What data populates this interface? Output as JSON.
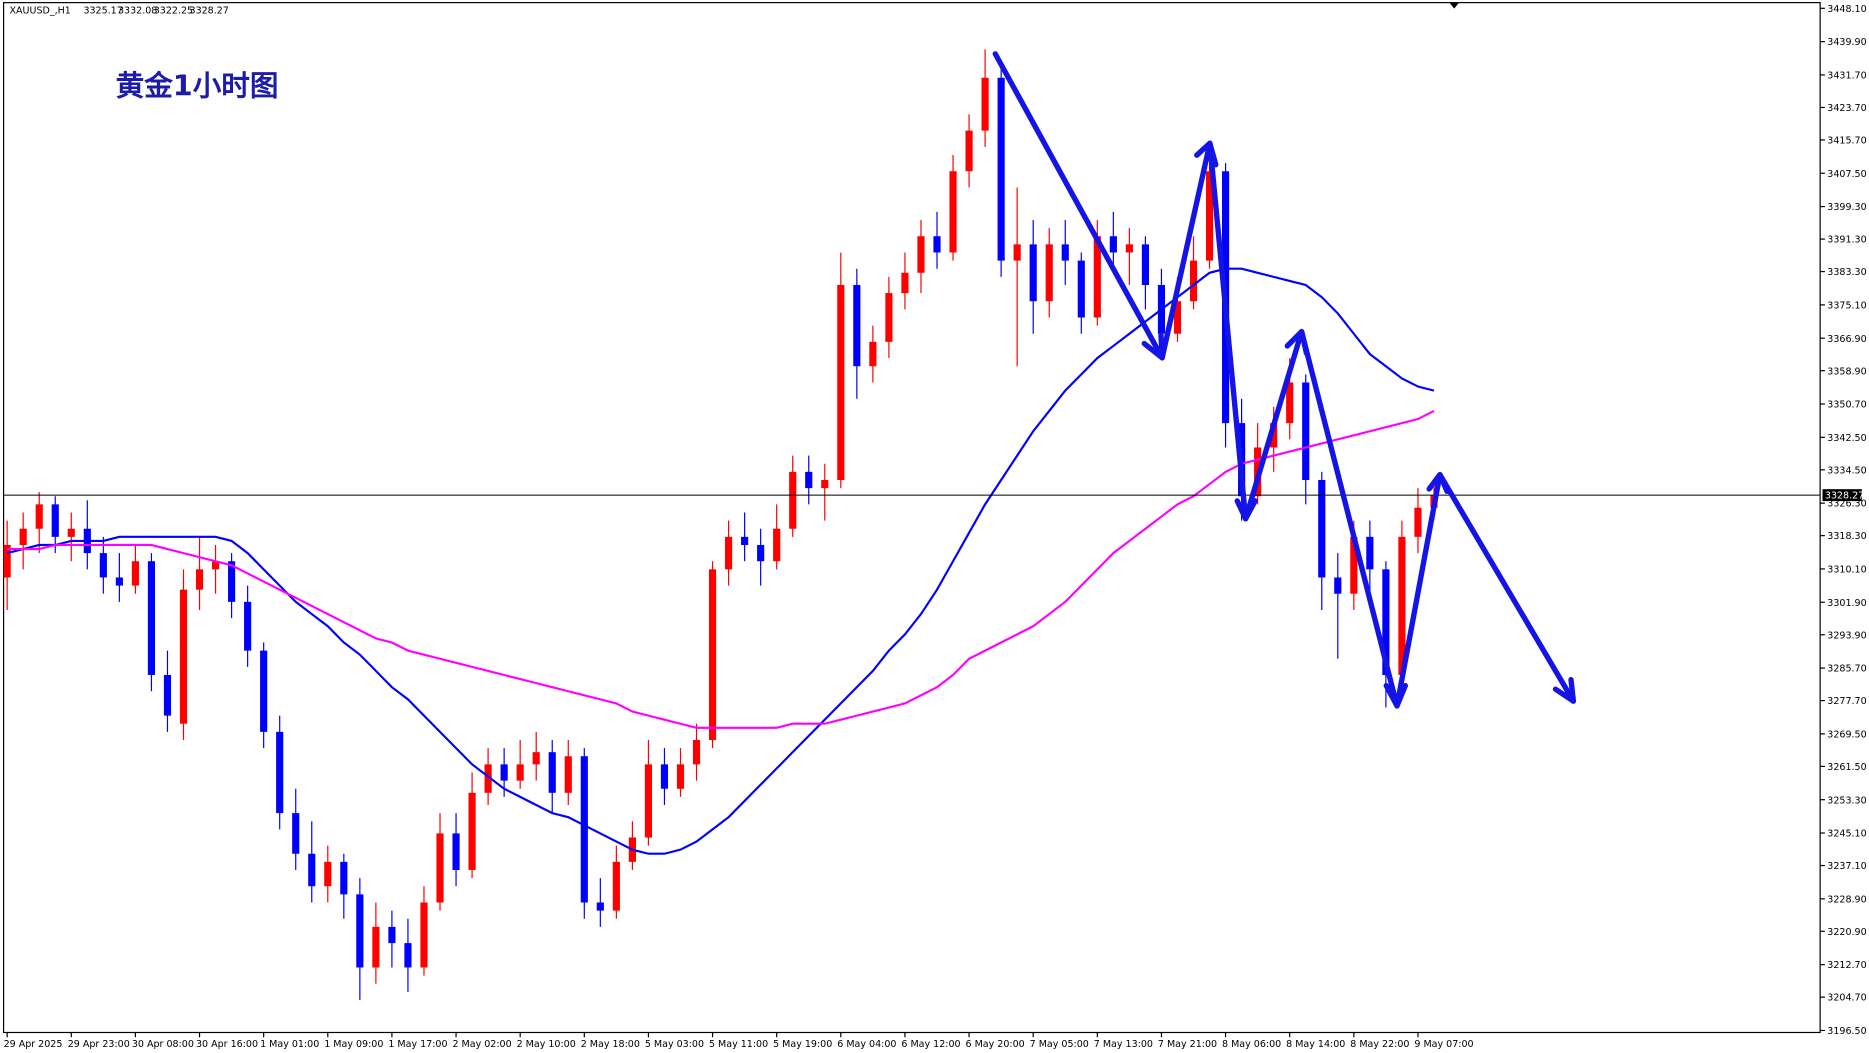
{
  "chart_data": {
    "type": "candlestick",
    "title": "黄金1小时图",
    "symbol": "XAUUSD_,H1",
    "up_color": "#ff0000",
    "down_color": "#0000ff",
    "ylim": [
      3196,
      3449.5
    ],
    "yticks": [
      {
        "value": 3448.1,
        "label": "3448.10"
      },
      {
        "value": 3439.9,
        "label": "3439.90"
      },
      {
        "value": 3431.7,
        "label": "3431.70"
      },
      {
        "value": 3423.7,
        "label": "3423.70"
      },
      {
        "value": 3415.7,
        "label": "3415.70"
      },
      {
        "value": 3407.5,
        "label": "3407.50"
      },
      {
        "value": 3399.3,
        "label": "3399.30"
      },
      {
        "value": 3391.3,
        "label": "3391.30"
      },
      {
        "value": 3383.3,
        "label": "3383.30"
      },
      {
        "value": 3375.1,
        "label": "3375.10"
      },
      {
        "value": 3366.9,
        "label": "3366.90"
      },
      {
        "value": 3358.9,
        "label": "3358.90"
      },
      {
        "value": 3350.7,
        "label": "3350.70"
      },
      {
        "value": 3342.5,
        "label": "3342.50"
      },
      {
        "value": 3334.5,
        "label": "3334.50"
      },
      {
        "value": 3326.3,
        "label": "3326.30"
      },
      {
        "value": 3318.3,
        "label": "3318.30"
      },
      {
        "value": 3310.1,
        "label": "3310.10"
      },
      {
        "value": 3301.9,
        "label": "3301.90"
      },
      {
        "value": 3293.9,
        "label": "3293.90"
      },
      {
        "value": 3285.7,
        "label": "3285.70"
      },
      {
        "value": 3277.7,
        "label": "3277.70"
      },
      {
        "value": 3269.5,
        "label": "3269.50"
      },
      {
        "value": 3261.5,
        "label": "3261.50"
      },
      {
        "value": 3253.3,
        "label": "3253.30"
      },
      {
        "value": 3245.1,
        "label": "3245.10"
      },
      {
        "value": 3237.1,
        "label": "3237.10"
      },
      {
        "value": 3228.9,
        "label": "3228.90"
      },
      {
        "value": 3220.9,
        "label": "3220.90"
      },
      {
        "value": 3212.7,
        "label": "3212.70"
      },
      {
        "value": 3204.7,
        "label": "3204.70"
      },
      {
        "value": 3196.5,
        "label": "3196.50"
      }
    ],
    "categories": [
      "29 Apr 2025",
      null,
      null,
      null,
      "29 Apr 23:00",
      null,
      null,
      null,
      "30 Apr 08:00",
      null,
      null,
      null,
      "30 Apr 16:00",
      null,
      null,
      null,
      "1 May 01:00",
      null,
      null,
      null,
      "1 May 09:00",
      null,
      null,
      null,
      "1 May 17:00",
      null,
      null,
      null,
      "2 May 02:00",
      null,
      null,
      null,
      "2 May 10:00",
      null,
      null,
      null,
      "2 May 18:00",
      null,
      null,
      null,
      "5 May 03:00",
      null,
      null,
      null,
      "5 May 11:00",
      null,
      null,
      null,
      "5 May 19:00",
      null,
      null,
      null,
      "6 May 04:00",
      null,
      null,
      null,
      "6 May 12:00",
      null,
      null,
      null,
      "6 May 20:00",
      null,
      null,
      null,
      "7 May 05:00",
      null,
      null,
      null,
      "7 May 13:00",
      null,
      null,
      null,
      "7 May 21:00",
      null,
      null,
      null,
      "8 May 06:00",
      null,
      null,
      null,
      "8 May 14:00",
      null,
      null,
      null,
      "8 May 22:00",
      null,
      null,
      null,
      "9 May 07:00",
      null
    ],
    "candles": [
      [
        3308,
        3322,
        3300,
        3316
      ],
      [
        3316,
        3324,
        3310,
        3320
      ],
      [
        3320,
        3329,
        3314,
        3326
      ],
      [
        3326,
        3328,
        3314,
        3318
      ],
      [
        3318,
        3324,
        3312,
        3320
      ],
      [
        3320,
        3327,
        3310,
        3314
      ],
      [
        3314,
        3318,
        3304,
        3308
      ],
      [
        3308,
        3314,
        3302,
        3306
      ],
      [
        3306,
        3316,
        3304,
        3312
      ],
      [
        3312,
        3314,
        3280,
        3284
      ],
      [
        3284,
        3290,
        3270,
        3274
      ],
      [
        3272,
        3310,
        3268,
        3305
      ],
      [
        3305,
        3318,
        3300,
        3310
      ],
      [
        3310,
        3316,
        3304,
        3312
      ],
      [
        3312,
        3314,
        3298,
        3302
      ],
      [
        3302,
        3306,
        3286,
        3290
      ],
      [
        3290,
        3292,
        3266,
        3270
      ],
      [
        3270,
        3274,
        3246,
        3250
      ],
      [
        3250,
        3256,
        3236,
        3240
      ],
      [
        3240,
        3248,
        3228,
        3232
      ],
      [
        3232,
        3242,
        3228,
        3238
      ],
      [
        3238,
        3240,
        3224,
        3230
      ],
      [
        3230,
        3234,
        3204,
        3212
      ],
      [
        3212,
        3228,
        3208,
        3222
      ],
      [
        3222,
        3226,
        3212,
        3218
      ],
      [
        3218,
        3224,
        3206,
        3212
      ],
      [
        3212,
        3232,
        3210,
        3228
      ],
      [
        3228,
        3250,
        3226,
        3245
      ],
      [
        3245,
        3250,
        3232,
        3236
      ],
      [
        3236,
        3260,
        3234,
        3255
      ],
      [
        3255,
        3266,
        3252,
        3262
      ],
      [
        3262,
        3266,
        3254,
        3258
      ],
      [
        3258,
        3268,
        3256,
        3262
      ],
      [
        3262,
        3270,
        3258,
        3265
      ],
      [
        3265,
        3268,
        3250,
        3255
      ],
      [
        3255,
        3268,
        3252,
        3264
      ],
      [
        3264,
        3266,
        3224,
        3228
      ],
      [
        3228,
        3234,
        3222,
        3226
      ],
      [
        3226,
        3242,
        3224,
        3238
      ],
      [
        3238,
        3248,
        3236,
        3244
      ],
      [
        3244,
        3268,
        3242,
        3262
      ],
      [
        3262,
        3266,
        3252,
        3256
      ],
      [
        3256,
        3266,
        3254,
        3262
      ],
      [
        3262,
        3272,
        3258,
        3268
      ],
      [
        3268,
        3312,
        3266,
        3310
      ],
      [
        3310,
        3322,
        3306,
        3318
      ],
      [
        3318,
        3324,
        3312,
        3316
      ],
      [
        3316,
        3320,
        3306,
        3312
      ],
      [
        3312,
        3326,
        3310,
        3320
      ],
      [
        3320,
        3338,
        3318,
        3334
      ],
      [
        3334,
        3338,
        3326,
        3330
      ],
      [
        3330,
        3336,
        3322,
        3332
      ],
      [
        3332,
        3388,
        3330,
        3380
      ],
      [
        3380,
        3384,
        3352,
        3360
      ],
      [
        3360,
        3370,
        3356,
        3366
      ],
      [
        3366,
        3382,
        3362,
        3378
      ],
      [
        3378,
        3388,
        3374,
        3383
      ],
      [
        3383,
        3396,
        3378,
        3392
      ],
      [
        3392,
        3398,
        3384,
        3388
      ],
      [
        3388,
        3412,
        3386,
        3408
      ],
      [
        3408,
        3422,
        3404,
        3418
      ],
      [
        3418,
        3438,
        3414,
        3431
      ],
      [
        3431,
        3434,
        3382,
        3386
      ],
      [
        3386,
        3404,
        3360,
        3390
      ],
      [
        3390,
        3396,
        3368,
        3376
      ],
      [
        3376,
        3394,
        3372,
        3390
      ],
      [
        3390,
        3396,
        3380,
        3386
      ],
      [
        3386,
        3388,
        3368,
        3372
      ],
      [
        3372,
        3396,
        3370,
        3392
      ],
      [
        3392,
        3398,
        3384,
        3388
      ],
      [
        3388,
        3394,
        3380,
        3390
      ],
      [
        3390,
        3392,
        3374,
        3380
      ],
      [
        3380,
        3384,
        3362,
        3368
      ],
      [
        3368,
        3382,
        3366,
        3376
      ],
      [
        3376,
        3392,
        3374,
        3386
      ],
      [
        3386,
        3414,
        3384,
        3408
      ],
      [
        3408,
        3410,
        3340,
        3346
      ],
      [
        3346,
        3352,
        3322,
        3328
      ],
      [
        3328,
        3346,
        3326,
        3340
      ],
      [
        3340,
        3350,
        3334,
        3346
      ],
      [
        3346,
        3362,
        3342,
        3356
      ],
      [
        3356,
        3358,
        3326,
        3332
      ],
      [
        3332,
        3334,
        3300,
        3308
      ],
      [
        3308,
        3314,
        3288,
        3304
      ],
      [
        3304,
        3322,
        3300,
        3318
      ],
      [
        3318,
        3322,
        3304,
        3310
      ],
      [
        3310,
        3312,
        3276,
        3284
      ],
      [
        3284,
        3322,
        3280,
        3318
      ],
      [
        3318,
        3330,
        3314,
        3325.17
      ],
      [
        3325.17,
        3332.08,
        3322.25,
        3328.27
      ]
    ],
    "moving_averages": [
      {
        "color": "#0000ff",
        "values": [
          3314,
          3315,
          3316,
          3316,
          3317,
          3317,
          3317,
          3318,
          3318,
          3318,
          3318,
          3318,
          3318,
          3318,
          3317,
          3314,
          3310,
          3306,
          3302,
          3299,
          3296,
          3292,
          3289,
          3285,
          3281,
          3278,
          3274,
          3270,
          3266,
          3262,
          3259,
          3256,
          3254,
          3252,
          3250,
          3249,
          3247,
          3245,
          3243,
          3241,
          3240,
          3240,
          3241,
          3243,
          3246,
          3249,
          3253,
          3257,
          3261,
          3265,
          3269,
          3273,
          3277,
          3281,
          3285,
          3290,
          3294,
          3299,
          3305,
          3312,
          3319,
          3326,
          3332,
          3338,
          3344,
          3349,
          3354,
          3358,
          3362,
          3365,
          3368,
          3371,
          3374,
          3377,
          3380,
          3383,
          3384,
          3384,
          3383,
          3382,
          3381,
          3380,
          3377,
          3373,
          3368,
          3363,
          3360,
          3357,
          3355,
          3354
        ]
      },
      {
        "color": "#ff00ff",
        "values": [
          3315,
          3315,
          3315,
          3316,
          3316,
          3316,
          3316,
          3316,
          3316,
          3316,
          3315,
          3314,
          3313,
          3312,
          3311,
          3309,
          3307,
          3305,
          3303,
          3301,
          3299,
          3297,
          3295,
          3293,
          3292,
          3290,
          3289,
          3288,
          3287,
          3286,
          3285,
          3284,
          3283,
          3282,
          3281,
          3280,
          3279,
          3278,
          3277,
          3275,
          3274,
          3273,
          3272,
          3271,
          3271,
          3271,
          3271,
          3271,
          3271,
          3272,
          3272,
          3272,
          3273,
          3274,
          3275,
          3276,
          3277,
          3279,
          3281,
          3284,
          3288,
          3290,
          3292,
          3294,
          3296,
          3299,
          3302,
          3306,
          3310,
          3314,
          3317,
          3320,
          3323,
          3326,
          3328,
          3331,
          3334,
          3336,
          3337,
          3338,
          3339,
          3340,
          3341,
          3342,
          3343,
          3344,
          3345,
          3346,
          3347,
          3349
        ]
      }
    ]
  }
}
